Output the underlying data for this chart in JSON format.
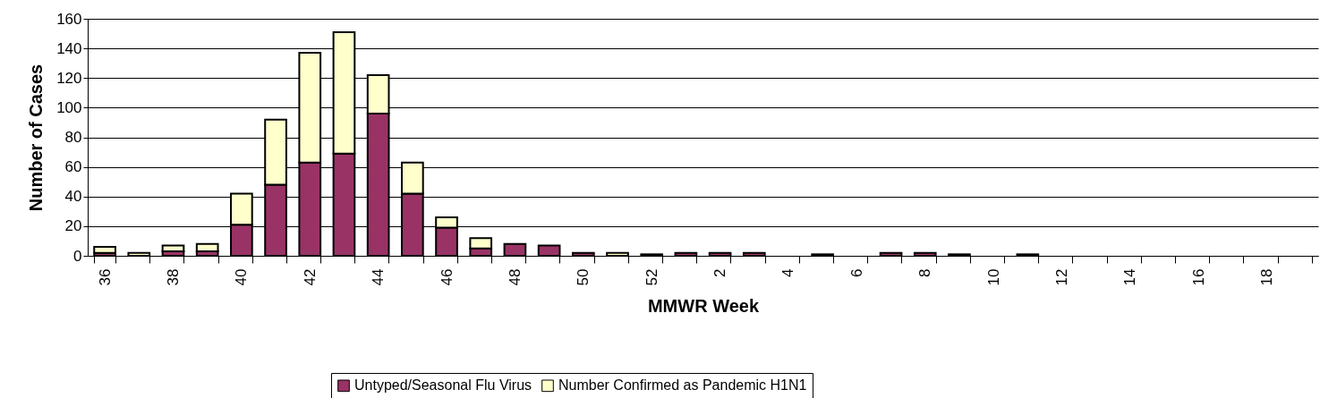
{
  "chart_data": {
    "type": "bar",
    "stacked": true,
    "xlabel": "MMWR Week",
    "ylabel": "Number of Cases",
    "categories": [
      "36",
      null,
      "38",
      null,
      "40",
      null,
      "42",
      null,
      "44",
      null,
      "46",
      null,
      "48",
      null,
      "50",
      null,
      "52",
      null,
      "2",
      null,
      "4",
      null,
      "6",
      null,
      "8",
      null,
      "10",
      null,
      "12",
      null,
      "14",
      null,
      "16",
      null,
      "18",
      null
    ],
    "series": [
      {
        "name": "Untyped/Seasonal Flu Virus",
        "color": "#993366",
        "values": [
          2,
          0,
          3,
          3,
          21,
          48,
          63,
          69,
          96,
          42,
          19,
          5,
          8,
          7,
          2,
          0,
          1,
          2,
          2,
          2,
          0,
          1,
          0,
          2,
          2,
          1,
          0,
          1,
          0,
          0,
          0,
          0,
          0,
          0,
          0,
          0
        ]
      },
      {
        "name": "Number Confirmed as Pandemic H1N1",
        "color": "#ffffcc",
        "values": [
          4,
          2,
          4,
          5,
          21,
          44,
          74,
          82,
          26,
          21,
          7,
          7,
          0,
          0,
          0,
          2,
          0,
          0,
          0,
          0,
          0,
          0,
          0,
          0,
          0,
          0,
          0,
          0,
          0,
          0,
          0,
          0,
          0,
          0,
          0,
          0
        ]
      }
    ],
    "ylim": [
      0,
      160
    ],
    "yticks": [
      0,
      20,
      40,
      60,
      80,
      100,
      120,
      140,
      160
    ],
    "grid": "y",
    "legend": "bottom"
  }
}
